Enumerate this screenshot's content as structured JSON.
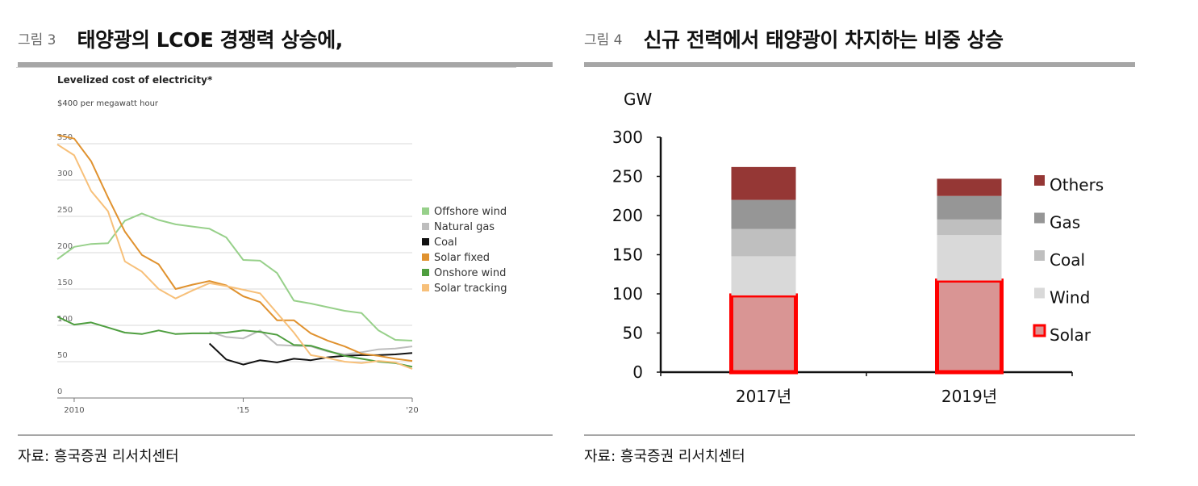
{
  "figures": [
    {
      "number": "그림 3",
      "title": "태양광의 LCOE 경쟁력 상승에,",
      "source": "자료: 흥국증권 리서치센터"
    },
    {
      "number": "그림 4",
      "title": "신규 전력에서 태양광이 차지하는 비중 상승",
      "source": "자료: 흥국증권 리서치센터"
    }
  ],
  "chart_data": [
    {
      "type": "line",
      "title": "Levelized cost of electricity*",
      "subtitle": "$400 per megawatt hour",
      "ylim": [
        0,
        400
      ],
      "y_ticks": [
        "0",
        "50",
        "100",
        "150",
        "200",
        "250",
        "300",
        "350"
      ],
      "xlim": [
        2009.5,
        2020
      ],
      "x_ticks": [
        {
          "x": 2010,
          "label": "2010"
        },
        {
          "x": 2015,
          "label": "'15"
        },
        {
          "x": 2020,
          "label": "'20"
        }
      ],
      "grid": true,
      "legend": "right",
      "series": [
        {
          "name": "Offshore wind",
          "color": "#97d08a",
          "points": [
            [
              2009.5,
              191
            ],
            [
              2010,
              208
            ],
            [
              2010.5,
              212
            ],
            [
              2011,
              213
            ],
            [
              2011.5,
              244
            ],
            [
              2012,
              254
            ],
            [
              2012.5,
              245
            ],
            [
              2013,
              239
            ],
            [
              2013.5,
              236
            ],
            [
              2014,
              233
            ],
            [
              2014.5,
              221
            ],
            [
              2015,
              190
            ],
            [
              2015.5,
              189
            ],
            [
              2016,
              172
            ],
            [
              2016.5,
              134
            ],
            [
              2017,
              130
            ],
            [
              2017.5,
              125
            ],
            [
              2018,
              120
            ],
            [
              2018.5,
              117
            ],
            [
              2019,
              93
            ],
            [
              2019.5,
              80
            ],
            [
              2020,
              79
            ]
          ]
        },
        {
          "name": "Natural gas",
          "color": "#bdbdbd",
          "points": [
            [
              2014,
              91
            ],
            [
              2014.5,
              84
            ],
            [
              2015,
              82
            ],
            [
              2015.5,
              93
            ],
            [
              2016,
              73
            ],
            [
              2016.5,
              72
            ],
            [
              2017,
              71
            ],
            [
              2017.5,
              64
            ],
            [
              2018,
              60
            ],
            [
              2018.5,
              63
            ],
            [
              2019,
              67
            ],
            [
              2019.5,
              68
            ],
            [
              2020,
              71
            ]
          ]
        },
        {
          "name": "Coal",
          "color": "#111111",
          "points": [
            [
              2014,
              75
            ],
            [
              2014.5,
              53
            ],
            [
              2015,
              46
            ],
            [
              2015.5,
              52
            ],
            [
              2016,
              49
            ],
            [
              2016.5,
              54
            ],
            [
              2017,
              52
            ],
            [
              2017.5,
              56
            ],
            [
              2018,
              58
            ],
            [
              2018.5,
              59
            ],
            [
              2019,
              59
            ],
            [
              2019.5,
              60
            ],
            [
              2020,
              62
            ]
          ]
        },
        {
          "name": "Solar fixed",
          "color": "#e0922f",
          "points": [
            [
              2009.5,
              362
            ],
            [
              2010,
              357
            ],
            [
              2010.5,
              326
            ],
            [
              2011,
              276
            ],
            [
              2011.5,
              229
            ],
            [
              2012,
              197
            ],
            [
              2012.5,
              184
            ],
            [
              2013,
              150
            ],
            [
              2013.5,
              156
            ],
            [
              2014,
              161
            ],
            [
              2014.5,
              155
            ],
            [
              2015,
              140
            ],
            [
              2015.5,
              132
            ],
            [
              2016,
              107
            ],
            [
              2016.5,
              107
            ],
            [
              2017,
              89
            ],
            [
              2017.5,
              79
            ],
            [
              2018,
              71
            ],
            [
              2018.5,
              61
            ],
            [
              2019,
              58
            ],
            [
              2019.5,
              54
            ],
            [
              2020,
              51
            ]
          ]
        },
        {
          "name": "Onshore wind",
          "color": "#4e9e3f",
          "points": [
            [
              2009.5,
              112
            ],
            [
              2010,
              101
            ],
            [
              2010.5,
              104
            ],
            [
              2011,
              97
            ],
            [
              2011.5,
              90
            ],
            [
              2012,
              88
            ],
            [
              2012.5,
              93
            ],
            [
              2013,
              88
            ],
            [
              2013.5,
              89
            ],
            [
              2014,
              89
            ],
            [
              2014.5,
              90
            ],
            [
              2015,
              93
            ],
            [
              2015.5,
              91
            ],
            [
              2016,
              87
            ],
            [
              2016.5,
              73
            ],
            [
              2017,
              72
            ],
            [
              2017.5,
              65
            ],
            [
              2018,
              58
            ],
            [
              2018.5,
              54
            ],
            [
              2019,
              50
            ],
            [
              2019.5,
              48
            ],
            [
              2020,
              43
            ]
          ]
        },
        {
          "name": "Solar tracking",
          "color": "#f7c07a",
          "points": [
            [
              2009.5,
              349
            ],
            [
              2010,
              334
            ],
            [
              2010.5,
              285
            ],
            [
              2011,
              257
            ],
            [
              2011.5,
              188
            ],
            [
              2012,
              174
            ],
            [
              2012.5,
              150
            ],
            [
              2013,
              137
            ],
            [
              2013.5,
              148
            ],
            [
              2014,
              158
            ],
            [
              2014.5,
              154
            ],
            [
              2015,
              149
            ],
            [
              2015.5,
              144
            ],
            [
              2016,
              117
            ],
            [
              2016.5,
              90
            ],
            [
              2017,
              59
            ],
            [
              2017.5,
              55
            ],
            [
              2018,
              50
            ],
            [
              2018.5,
              48
            ],
            [
              2019,
              51
            ],
            [
              2019.5,
              49
            ],
            [
              2020,
              40
            ]
          ]
        }
      ]
    },
    {
      "type": "bar",
      "stacked": true,
      "ylabel": "GW",
      "ylim": [
        0,
        300
      ],
      "y_ticks": [
        "0",
        "50",
        "100",
        "150",
        "200",
        "250",
        "300"
      ],
      "categories": [
        "2017년",
        "2019년"
      ],
      "legend": "right",
      "series": [
        {
          "name": "Solar",
          "color": "#d99594",
          "values": [
            98,
            117
          ],
          "outline": "#ff0000"
        },
        {
          "name": "Wind",
          "color": "#d9d9d9",
          "values": [
            50,
            58
          ]
        },
        {
          "name": "Coal",
          "color": "#bfbfbf",
          "values": [
            35,
            20
          ]
        },
        {
          "name": "Gas",
          "color": "#969696",
          "values": [
            37,
            30
          ]
        },
        {
          "name": "Others",
          "color": "#953735",
          "values": [
            42,
            22
          ]
        }
      ]
    }
  ]
}
